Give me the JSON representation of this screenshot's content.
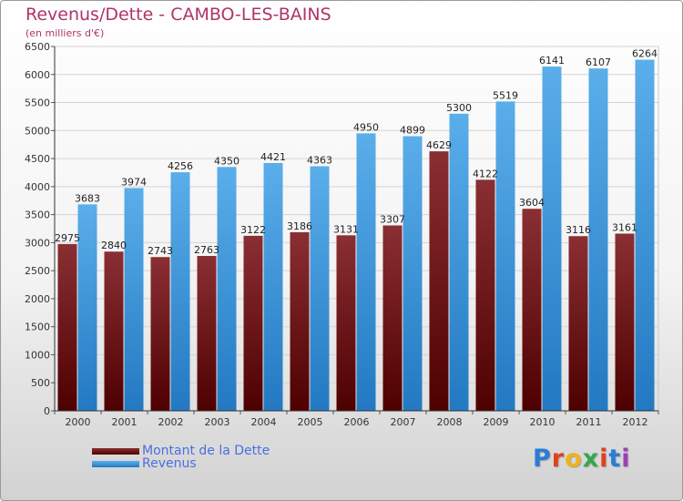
{
  "title": "Revenus/Dette - CAMBO-LES-BAINS",
  "subtitle": "(en milliers d'€)",
  "colors": {
    "dette": "#7a1f22",
    "revenus": "#4aa3e6"
  },
  "logo": {
    "text": "Proxiti"
  },
  "chart_data": {
    "type": "bar",
    "categories": [
      "2000",
      "2001",
      "2002",
      "2003",
      "2004",
      "2005",
      "2006",
      "2007",
      "2008",
      "2009",
      "2010",
      "2011",
      "2012"
    ],
    "series": [
      {
        "name": "Montant de la Dette",
        "values": [
          2975,
          2840,
          2743,
          2763,
          3122,
          3186,
          3131,
          3307,
          4629,
          4122,
          3604,
          3116,
          3161
        ]
      },
      {
        "name": "Revenus",
        "values": [
          3683,
          3974,
          4256,
          4350,
          4421,
          4363,
          4950,
          4899,
          5300,
          5519,
          6141,
          6107,
          6264
        ]
      }
    ],
    "yticks": [
      0,
      500,
      1000,
      1500,
      2000,
      2500,
      3000,
      3500,
      4000,
      4500,
      5000,
      5500,
      6000,
      6500
    ],
    "ylim": [
      0,
      6500
    ],
    "grid": true,
    "legend_position": "bottom-left"
  }
}
